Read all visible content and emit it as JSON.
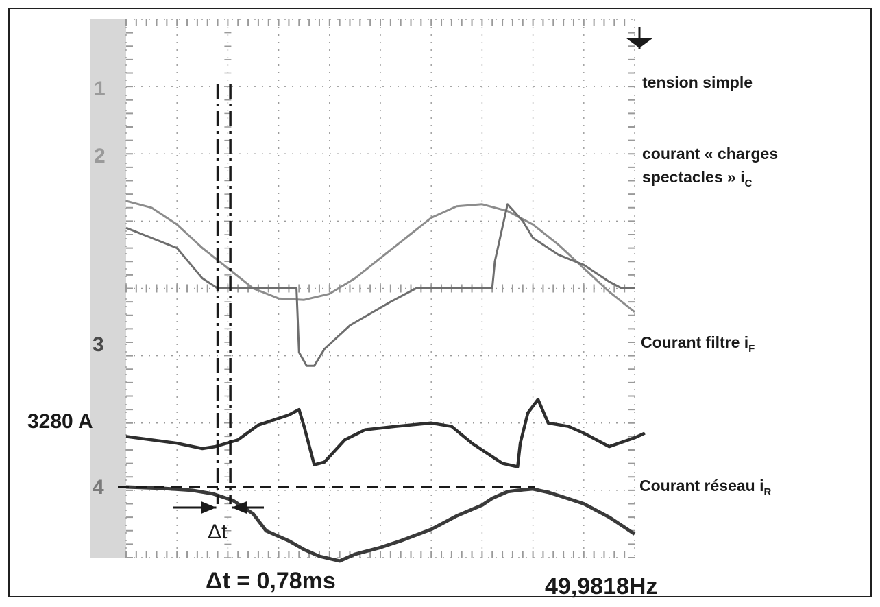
{
  "chart_data": {
    "type": "line",
    "title": "",
    "xlabel": "",
    "ylabel": "",
    "grid": true,
    "x_divisions": 10,
    "y_divisions": 8,
    "series": [
      {
        "name": "tension simple",
        "marker": "1",
        "points": [
          [
            0,
            5.3
          ],
          [
            0.5,
            5.2
          ],
          [
            1,
            4.95
          ],
          [
            1.5,
            4.6
          ],
          [
            2,
            4.3
          ],
          [
            2.5,
            4.0
          ],
          [
            3,
            3.85
          ],
          [
            3.5,
            3.83
          ],
          [
            4,
            3.92
          ],
          [
            4.5,
            4.15
          ],
          [
            5,
            4.45
          ],
          [
            5.5,
            4.75
          ],
          [
            6,
            5.05
          ],
          [
            6.5,
            5.22
          ],
          [
            7,
            5.25
          ],
          [
            7.5,
            5.15
          ],
          [
            8,
            4.95
          ],
          [
            8.5,
            4.65
          ],
          [
            9,
            4.3
          ],
          [
            9.5,
            3.95
          ],
          [
            10,
            3.65
          ]
        ]
      },
      {
        "name": "courant « charges spectacles » iC",
        "marker": "2",
        "points": [
          [
            0,
            4.9
          ],
          [
            0.5,
            4.75
          ],
          [
            1,
            4.6
          ],
          [
            1.5,
            4.15
          ],
          [
            1.8,
            4.0
          ],
          [
            2.5,
            4.0
          ],
          [
            3.35,
            4.0
          ],
          [
            3.4,
            3.05
          ],
          [
            3.55,
            2.85
          ],
          [
            3.7,
            2.85
          ],
          [
            3.9,
            3.1
          ],
          [
            4.4,
            3.45
          ],
          [
            5.2,
            3.8
          ],
          [
            5.7,
            4.0
          ],
          [
            6.5,
            4.0
          ],
          [
            7.2,
            4.0
          ],
          [
            7.25,
            4.4
          ],
          [
            7.5,
            5.25
          ],
          [
            7.8,
            5.0
          ],
          [
            8,
            4.75
          ],
          [
            8.5,
            4.5
          ],
          [
            9,
            4.35
          ],
          [
            9.5,
            4.1
          ],
          [
            9.75,
            4.0
          ],
          [
            10,
            4.0
          ]
        ]
      },
      {
        "name": "Courant filtre iF",
        "marker": "3",
        "points": [
          [
            0,
            1.8
          ],
          [
            1,
            1.7
          ],
          [
            1.5,
            1.62
          ],
          [
            1.75,
            1.65
          ],
          [
            2.2,
            1.75
          ],
          [
            2.6,
            1.97
          ],
          [
            3.2,
            2.12
          ],
          [
            3.4,
            2.2
          ],
          [
            3.5,
            1.95
          ],
          [
            3.7,
            1.38
          ],
          [
            3.9,
            1.42
          ],
          [
            4.3,
            1.75
          ],
          [
            4.7,
            1.9
          ],
          [
            5.3,
            1.95
          ],
          [
            6,
            2.0
          ],
          [
            6.4,
            1.95
          ],
          [
            6.8,
            1.7
          ],
          [
            7.4,
            1.4
          ],
          [
            7.7,
            1.35
          ],
          [
            7.75,
            1.7
          ],
          [
            7.9,
            2.15
          ],
          [
            8.1,
            2.35
          ],
          [
            8.3,
            2.0
          ],
          [
            8.7,
            1.95
          ],
          [
            9,
            1.85
          ],
          [
            9.5,
            1.65
          ],
          [
            10,
            1.78
          ],
          [
            10.2,
            1.85
          ]
        ]
      },
      {
        "name": "Courant réseau iR",
        "marker": "4",
        "points": [
          [
            0,
            1.05
          ],
          [
            0.7,
            1.03
          ],
          [
            1.3,
            1.0
          ],
          [
            1.7,
            0.95
          ],
          [
            2.1,
            0.85
          ],
          [
            2.5,
            0.65
          ],
          [
            2.75,
            0.4
          ],
          [
            3.2,
            0.25
          ],
          [
            3.5,
            0.12
          ],
          [
            3.8,
            0.02
          ],
          [
            4.2,
            -0.05
          ],
          [
            4.5,
            0.05
          ],
          [
            5,
            0.15
          ],
          [
            5.4,
            0.25
          ],
          [
            6,
            0.42
          ],
          [
            6.5,
            0.62
          ],
          [
            7.0,
            0.78
          ],
          [
            7.2,
            0.88
          ],
          [
            7.5,
            0.98
          ],
          [
            7.7,
            1.0
          ],
          [
            8.0,
            1.02
          ],
          [
            8.3,
            0.97
          ],
          [
            8.6,
            0.9
          ],
          [
            9.0,
            0.8
          ],
          [
            9.5,
            0.6
          ],
          [
            9.8,
            0.45
          ],
          [
            10,
            0.35
          ]
        ]
      }
    ],
    "annotations": {
      "reference_label": "3280 A",
      "delta_t_label": "Δt",
      "delta_t_value": "Δt = 0,78ms",
      "frequency": "49,9818Hz"
    }
  },
  "colors": {
    "trace_1": "#8c8c8c",
    "trace_2": "#6e6e6e",
    "trace_3": "#2e2e2e",
    "trace_4": "#3a3a3a",
    "grid": "#9a9a9a",
    "screen": "#ffffff",
    "border": "#202020",
    "text": "#1a1a1a"
  }
}
